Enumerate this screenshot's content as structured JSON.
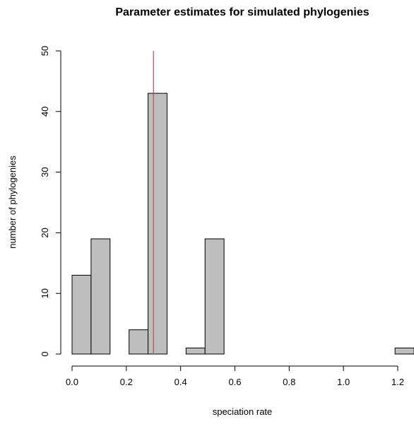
{
  "chart_data": {
    "type": "bar",
    "title": "Parameter estimates for simulated phylogenies",
    "xlabel": "speciation rate",
    "ylabel": "number of phylogenies",
    "xlim": [
      0,
      1.25
    ],
    "ylim": [
      0,
      50
    ],
    "x_ticks": [
      "0.0",
      "0.2",
      "0.4",
      "0.6",
      "0.8",
      "1.0",
      "1.2"
    ],
    "y_ticks": [
      "0",
      "10",
      "20",
      "30",
      "40",
      "50"
    ],
    "bins": [
      {
        "start": 0.0,
        "end": 0.07,
        "count": 13
      },
      {
        "start": 0.07,
        "end": 0.14,
        "count": 19
      },
      {
        "start": 0.14,
        "end": 0.21,
        "count": 0
      },
      {
        "start": 0.21,
        "end": 0.28,
        "count": 4
      },
      {
        "start": 0.28,
        "end": 0.35,
        "count": 43
      },
      {
        "start": 0.35,
        "end": 0.42,
        "count": 0
      },
      {
        "start": 0.42,
        "end": 0.49,
        "count": 1
      },
      {
        "start": 0.49,
        "end": 0.56,
        "count": 19
      },
      {
        "start": 0.56,
        "end": 0.63,
        "count": 0
      },
      {
        "start": 0.63,
        "end": 0.7,
        "count": 0
      },
      {
        "start": 0.7,
        "end": 0.77,
        "count": 0
      },
      {
        "start": 0.77,
        "end": 0.84,
        "count": 0
      },
      {
        "start": 0.84,
        "end": 0.91,
        "count": 0
      },
      {
        "start": 0.91,
        "end": 0.98,
        "count": 0
      },
      {
        "start": 0.98,
        "end": 1.05,
        "count": 0
      },
      {
        "start": 1.05,
        "end": 1.12,
        "count": 0
      },
      {
        "start": 1.12,
        "end": 1.19,
        "count": 0
      },
      {
        "start": 1.19,
        "end": 1.26,
        "count": 1
      }
    ],
    "reference_line": {
      "x": 0.3,
      "color": "#e8393c"
    },
    "bar_fill": "#bebebe",
    "bar_stroke": "#000000",
    "grid": false
  }
}
